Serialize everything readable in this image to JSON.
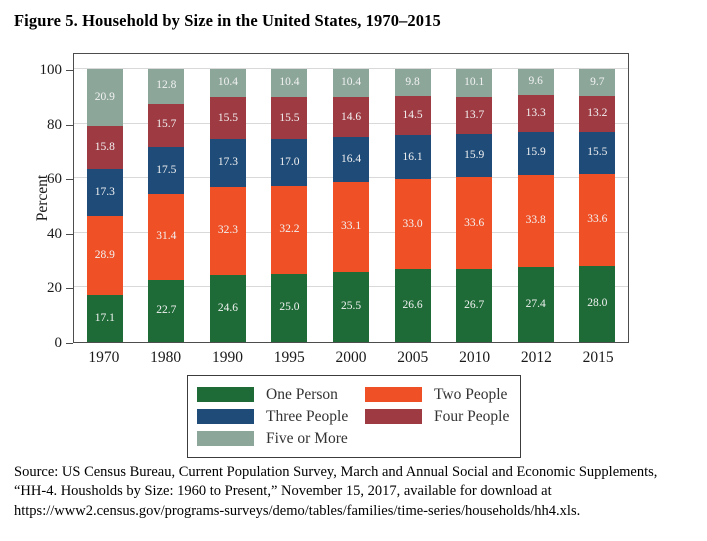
{
  "figure": {
    "title": "Figure 5. Household by Size in the United States, 1970–2015",
    "source_lines": [
      "Source: US Census Bureau, Current Population Survey, March and Annual Social and Economic Supplements,",
      "“HH-4. Housholds by Size: 1960 to Present,” November 15, 2017, available for download at",
      "https://www2.census.gov/programs-surveys/demo/tables/families/time-series/households/hh4.xls."
    ]
  },
  "chart_data": {
    "type": "bar",
    "stacked": true,
    "title": "Figure 5. Household by Size in the United States, 1970–2015",
    "categories": [
      "1970",
      "1980",
      "1990",
      "1995",
      "2000",
      "2005",
      "2010",
      "2012",
      "2015"
    ],
    "series": [
      {
        "name": "One Person",
        "color": "#1e6b37",
        "values": [
          17.1,
          22.7,
          24.6,
          25.0,
          25.5,
          26.6,
          26.7,
          27.4,
          28.0
        ]
      },
      {
        "name": "Two People",
        "color": "#ef5026",
        "values": [
          28.9,
          31.4,
          32.3,
          32.2,
          33.1,
          33.0,
          33.6,
          33.8,
          33.6
        ]
      },
      {
        "name": "Three People",
        "color": "#1e4b78",
        "values": [
          17.3,
          17.5,
          17.3,
          17.0,
          16.4,
          16.1,
          15.9,
          15.9,
          15.5
        ]
      },
      {
        "name": "Four People",
        "color": "#9e3a42",
        "values": [
          15.8,
          15.7,
          15.5,
          15.5,
          14.6,
          14.5,
          13.7,
          13.3,
          13.2
        ]
      },
      {
        "name": "Five or More",
        "color": "#8ca69a",
        "values": [
          20.9,
          12.8,
          10.4,
          10.4,
          10.4,
          9.8,
          10.1,
          9.6,
          9.7
        ]
      }
    ],
    "xlabel": "",
    "ylabel": "Percent",
    "ylim": [
      0,
      100
    ],
    "yticks": [
      0,
      20,
      40,
      60,
      80,
      100
    ],
    "grid": true,
    "grid_color": "#d9d9d9",
    "segment_label_color": "#f2f2f2",
    "legend_position": "bottom",
    "legend_order": [
      "One Person",
      "Two People",
      "Three People",
      "Four People",
      "Five or More"
    ]
  }
}
